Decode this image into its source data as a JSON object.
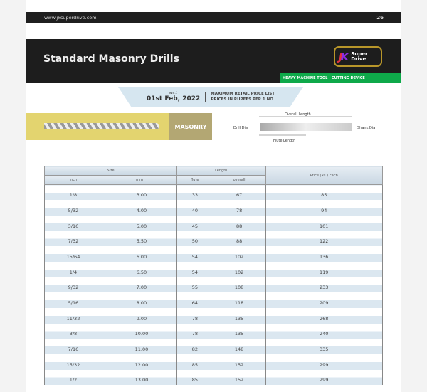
{
  "topbar": {
    "website": "www.jksuperdrive.com",
    "page_number": "26"
  },
  "header": {
    "title": "Standard Masonry Drills",
    "logo_text": "Super Drive",
    "tagline": "HEAVY MACHINE TOOL - CUTTING DEVICE"
  },
  "banner": {
    "wef": "w.e.f.",
    "date": "01st Feb, 2022",
    "line1": "MAXIMUM RETAIL PRICE LIST",
    "line2": "PRICES IN RUPEES PER 1 NO."
  },
  "category": "MASONRY",
  "diagram": {
    "overall": "Overall Length",
    "drill_dia": "Drill Dia",
    "shank_dia": "Shank Dia",
    "flute": "Flute Length"
  },
  "table": {
    "headers": {
      "size": "Size",
      "length": "Length",
      "price": "Price (Rs.) Each",
      "inch": "inch",
      "mm": "mm",
      "flute": "flute",
      "overall": "overall"
    },
    "rows": [
      [
        "1/8",
        "3.00",
        "33",
        "67",
        "85"
      ],
      [
        "5/32",
        "4.00",
        "40",
        "78",
        "94"
      ],
      [
        "3/16",
        "5.00",
        "45",
        "88",
        "101"
      ],
      [
        "7/32",
        "5.50",
        "50",
        "88",
        "122"
      ],
      [
        "15/64",
        "6.00",
        "54",
        "102",
        "136"
      ],
      [
        "1/4",
        "6.50",
        "54",
        "102",
        "119"
      ],
      [
        "9/32",
        "7.00",
        "55",
        "108",
        "233"
      ],
      [
        "5/16",
        "8.00",
        "64",
        "118",
        "209"
      ],
      [
        "11/32",
        "9.00",
        "78",
        "135",
        "268"
      ],
      [
        "3/8",
        "10.00",
        "78",
        "135",
        "240"
      ],
      [
        "7/16",
        "11.00",
        "82",
        "148",
        "335"
      ],
      [
        "15/32",
        "12.00",
        "85",
        "152",
        "299"
      ],
      [
        "1/2",
        "13.00",
        "85",
        "152",
        "299"
      ]
    ]
  }
}
